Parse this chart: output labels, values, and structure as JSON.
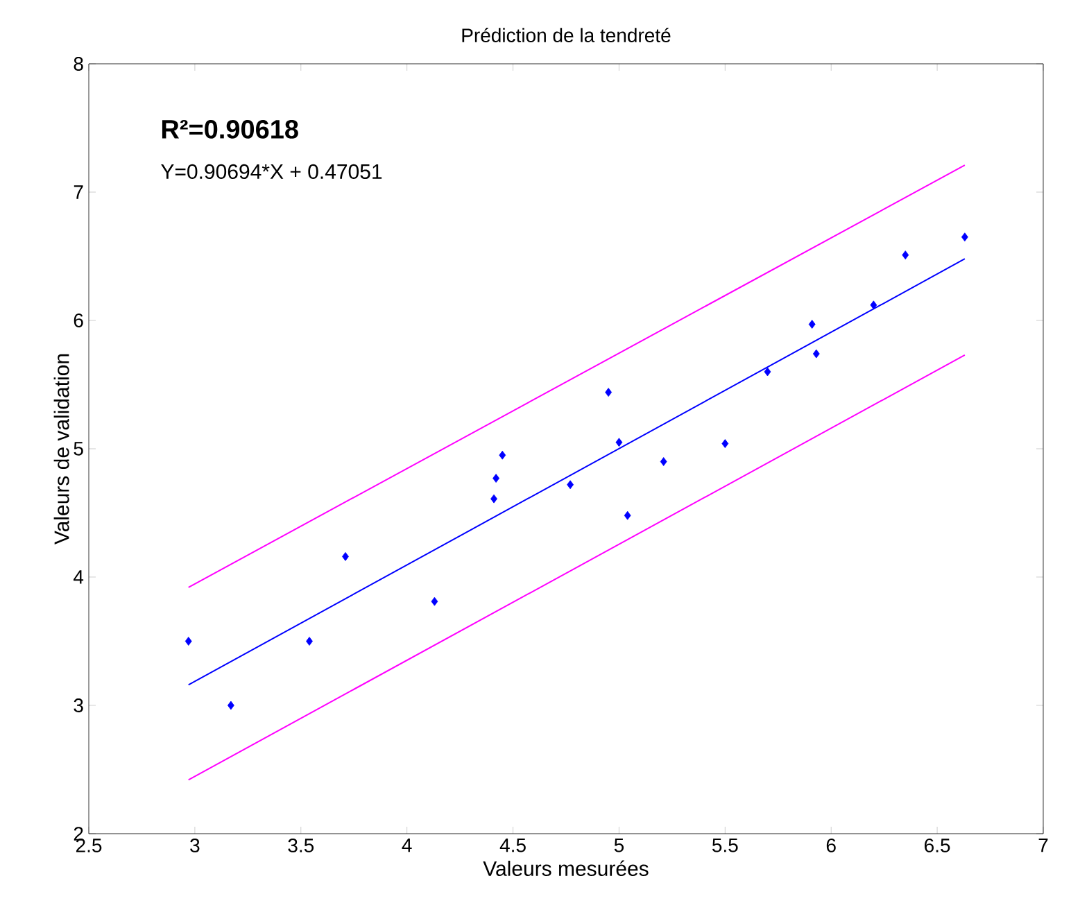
{
  "chart_data": {
    "type": "scatter",
    "title": "Prédiction de la tendreté",
    "xlabel": "Valeurs mesurées",
    "ylabel": "Valeurs de validation",
    "xlim": [
      2.5,
      7
    ],
    "ylim": [
      2,
      8
    ],
    "xticks": [
      2.5,
      3,
      3.5,
      4,
      4.5,
      5,
      5.5,
      6,
      6.5,
      7
    ],
    "yticks": [
      2,
      3,
      4,
      5,
      6,
      7,
      8
    ],
    "grid": false,
    "annotations": [
      "R²=0.90618",
      "Y=0.90694*X + 0.47051"
    ],
    "series": [
      {
        "color": "#0000ff",
        "marker": "diamond",
        "x": [
          2.97,
          3.17,
          3.54,
          3.71,
          4.13,
          4.41,
          4.42,
          4.45,
          4.77,
          4.95,
          5.0,
          5.04,
          5.21,
          5.5,
          5.7,
          5.91,
          5.93,
          6.2,
          6.35,
          6.63
        ],
        "values": [
          3.5,
          3.0,
          3.5,
          4.16,
          3.81,
          4.61,
          4.77,
          4.95,
          4.72,
          5.44,
          5.05,
          4.48,
          4.9,
          5.04,
          5.6,
          5.97,
          5.74,
          6.12,
          6.51,
          6.65
        ]
      },
      {
        "type": "line",
        "color": "#0000ff",
        "x": [
          2.97,
          6.63
        ],
        "values": [
          3.16,
          6.48
        ]
      },
      {
        "type": "line",
        "color": "#ff00ff",
        "x": [
          2.97,
          6.63
        ],
        "values": [
          3.92,
          7.21
        ]
      },
      {
        "type": "line",
        "color": "#ff00ff",
        "x": [
          2.97,
          6.63
        ],
        "values": [
          2.42,
          5.73
        ]
      }
    ]
  }
}
